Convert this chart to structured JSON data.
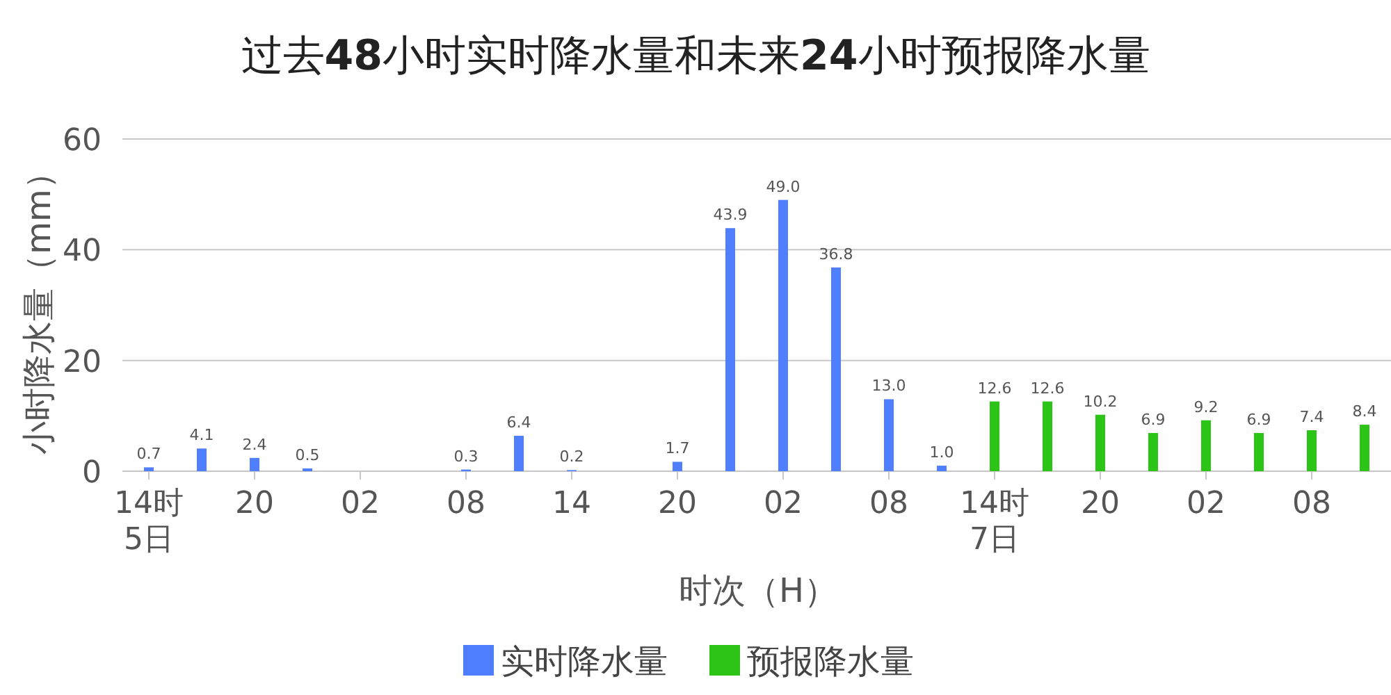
{
  "chart_data": {
    "type": "bar",
    "title": "过去**48**小时实时降水量和未来**24**小时预报降水量",
    "xlabel": "时次（H）",
    "ylabel": "小时降水量（mm）",
    "categories": [
      "14时\n5日",
      null,
      "20",
      null,
      "02",
      null,
      "08",
      null,
      "14",
      null,
      "20",
      null,
      "02",
      null,
      "08",
      null,
      "14时\n7日",
      null,
      "20",
      null,
      "02",
      null,
      "08",
      null
    ],
    "series": [
      {
        "name": "实时降水量",
        "color": "#4f7fff",
        "values": [
          0.7,
          4.1,
          2.4,
          0.5,
          null,
          null,
          0.3,
          6.4,
          0.2,
          null,
          1.7,
          43.9,
          49.0,
          36.8,
          13.0,
          1.0,
          null,
          null,
          null,
          null,
          null,
          null,
          null,
          null
        ],
        "value_labels": [
          "0.7",
          "4.1",
          "2.4",
          "0.5",
          null,
          null,
          "0.3",
          "6.4",
          "0.2",
          null,
          "1.7",
          "43.9",
          "49.0",
          "36.8",
          "13.0",
          "1.0",
          null,
          null,
          null,
          null,
          null,
          null,
          null,
          null
        ]
      },
      {
        "name": "预报降水量",
        "color": "#2cc417",
        "values": [
          null,
          null,
          null,
          null,
          null,
          null,
          null,
          null,
          null,
          null,
          null,
          null,
          null,
          null,
          null,
          null,
          12.6,
          12.6,
          10.2,
          6.9,
          9.2,
          6.9,
          7.4,
          8.4
        ],
        "value_labels": [
          null,
          null,
          null,
          null,
          null,
          null,
          null,
          null,
          null,
          null,
          null,
          null,
          null,
          null,
          null,
          null,
          "12.6",
          "12.6",
          "10.2",
          "6.9",
          "9.2",
          "6.9",
          "7.4",
          "8.4"
        ]
      }
    ],
    "ylim": [
      0,
      60
    ],
    "yticks": [
      0,
      20,
      40,
      60
    ],
    "grid": "y",
    "legend": "bottom"
  }
}
